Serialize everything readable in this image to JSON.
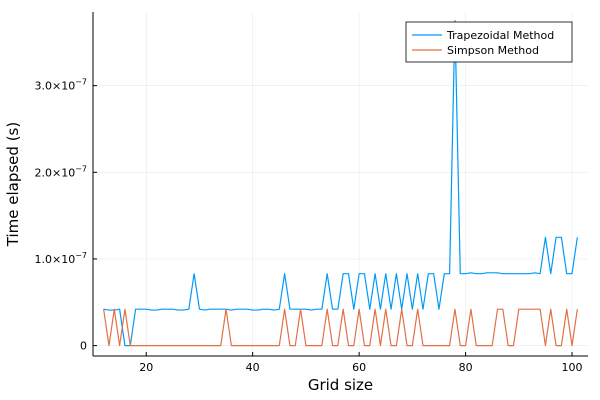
{
  "chart_data": {
    "type": "line",
    "title": "",
    "xlabel": "Grid size",
    "ylabel": "Time elapsed (s)",
    "xlim": [
      10,
      103
    ],
    "ylim": [
      -1.2e-08,
      3.85e-07
    ],
    "x_ticks": [
      20,
      40,
      60,
      80,
      100
    ],
    "x_tick_labels": [
      "20",
      "40",
      "60",
      "80",
      "100"
    ],
    "y_ticks": [
      0,
      1e-07,
      2e-07,
      3e-07
    ],
    "y_tick_labels": [
      {
        "mantissa": "0",
        "exponent": ""
      },
      {
        "mantissa": "1.0×10",
        "exponent": "−7"
      },
      {
        "mantissa": "2.0×10",
        "exponent": "−7"
      },
      {
        "mantissa": "3.0×10",
        "exponent": "−7"
      }
    ],
    "grid": true,
    "legend_position": "top-right",
    "x": [
      12,
      13,
      14,
      15,
      16,
      17,
      18,
      19,
      20,
      21,
      22,
      23,
      24,
      25,
      26,
      27,
      28,
      29,
      30,
      31,
      32,
      33,
      34,
      35,
      36,
      37,
      38,
      39,
      40,
      41,
      42,
      43,
      44,
      45,
      46,
      47,
      48,
      49,
      50,
      51,
      52,
      53,
      54,
      55,
      56,
      57,
      58,
      59,
      60,
      61,
      62,
      63,
      64,
      65,
      66,
      67,
      68,
      69,
      70,
      71,
      72,
      73,
      74,
      75,
      76,
      77,
      78,
      79,
      80,
      81,
      82,
      83,
      84,
      85,
      86,
      87,
      88,
      89,
      90,
      91,
      92,
      93,
      94,
      95,
      96,
      97,
      98,
      99,
      100,
      101
    ],
    "series": [
      {
        "name": "Trapezoidal Method",
        "color": "#009AFA",
        "values": [
          4.2e-08,
          4.1e-08,
          4.1e-08,
          4.2e-08,
          0,
          0,
          4.2e-08,
          4.2e-08,
          4.2e-08,
          4.1e-08,
          4.1e-08,
          4.2e-08,
          4.2e-08,
          4.2e-08,
          4.1e-08,
          4.1e-08,
          4.2e-08,
          8.3e-08,
          4.2e-08,
          4.1e-08,
          4.2e-08,
          4.2e-08,
          4.2e-08,
          4.2e-08,
          4.1e-08,
          4.2e-08,
          4.2e-08,
          4.2e-08,
          4.1e-08,
          4.1e-08,
          4.2e-08,
          4.2e-08,
          4.1e-08,
          4.2e-08,
          8.3e-08,
          4.2e-08,
          4.2e-08,
          4.2e-08,
          4.2e-08,
          4.1e-08,
          4.2e-08,
          4.2e-08,
          8.3e-08,
          4.2e-08,
          4.2e-08,
          8.3e-08,
          8.3e-08,
          4.2e-08,
          8.3e-08,
          8.3e-08,
          4.2e-08,
          8.3e-08,
          4.2e-08,
          8.3e-08,
          4.2e-08,
          8.3e-08,
          4.2e-08,
          8.3e-08,
          4.2e-08,
          8.3e-08,
          4.2e-08,
          8.3e-08,
          8.3e-08,
          4.2e-08,
          8.3e-08,
          8.3e-08,
          3.75e-07,
          8.3e-08,
          8.3e-08,
          8.4e-08,
          8.3e-08,
          8.3e-08,
          8.4e-08,
          8.4e-08,
          8.4e-08,
          8.3e-08,
          8.3e-08,
          8.3e-08,
          8.3e-08,
          8.3e-08,
          8.3e-08,
          8.4e-08,
          8.3e-08,
          1.25e-07,
          8.3e-08,
          1.25e-07,
          1.25e-07,
          8.3e-08,
          8.3e-08,
          1.25e-07
        ]
      },
      {
        "name": "Simpson Method",
        "color": "#E26F46",
        "values": [
          4.2e-08,
          0,
          4.2e-08,
          0,
          4.2e-08,
          0,
          0,
          0,
          0,
          0,
          0,
          0,
          0,
          0,
          0,
          0,
          0,
          0,
          0,
          0,
          0,
          0,
          0,
          4.2e-08,
          0,
          0,
          0,
          0,
          0,
          0,
          0,
          0,
          0,
          0,
          4.2e-08,
          0,
          0,
          4.2e-08,
          0,
          0,
          0,
          0,
          4.2e-08,
          0,
          0,
          4.2e-08,
          0,
          0,
          4.2e-08,
          0,
          0,
          4.2e-08,
          0,
          4.2e-08,
          0,
          0,
          4.2e-08,
          0,
          0,
          4.2e-08,
          0,
          0,
          0,
          0,
          0,
          0,
          4.2e-08,
          0,
          0,
          4.2e-08,
          0,
          0,
          0,
          0,
          4.2e-08,
          4.2e-08,
          0,
          0,
          4.2e-08,
          4.2e-08,
          4.2e-08,
          4.2e-08,
          4.2e-08,
          0,
          4.2e-08,
          0,
          0,
          4.2e-08,
          0,
          4.2e-08
        ]
      }
    ]
  }
}
